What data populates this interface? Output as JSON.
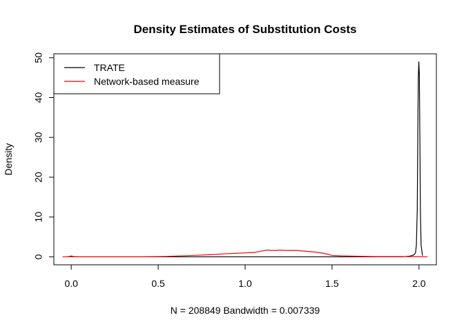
{
  "chart_data": {
    "type": "line",
    "title": "Density Estimates of Substitution Costs",
    "xlabel": "N = 208849   Bandwidth = 0.007339",
    "ylabel": "Density",
    "xlim": [
      -0.1,
      2.1
    ],
    "ylim": [
      -2,
      51
    ],
    "x_ticks": [
      0.0,
      0.5,
      1.0,
      1.5,
      2.0
    ],
    "x_tick_labels": [
      "0.0",
      "0.5",
      "1.0",
      "1.5",
      "2.0"
    ],
    "y_ticks": [
      0,
      10,
      20,
      30,
      40,
      50
    ],
    "y_tick_labels": [
      "0",
      "10",
      "20",
      "30",
      "40",
      "50"
    ],
    "grid": false,
    "legend_position": "top-left",
    "series": [
      {
        "name": "TRATE",
        "color": "#000000",
        "x": [
          -0.02,
          -0.01,
          0.0,
          0.01,
          0.02,
          0.1,
          0.5,
          1.0,
          1.5,
          1.8,
          1.9,
          1.95,
          1.97,
          1.98,
          1.985,
          1.99,
          1.993,
          1.996,
          1.999,
          2.002,
          2.005,
          2.008,
          2.012,
          2.02
        ],
        "y": [
          0.0,
          0.1,
          0.2,
          0.1,
          0.0,
          0.0,
          0.0,
          0.0,
          0.0,
          0.0,
          0.0,
          0.2,
          0.5,
          1.0,
          3.0,
          12.0,
          30.0,
          45.0,
          49.0,
          46.0,
          30.0,
          12.0,
          3.0,
          0.3
        ]
      },
      {
        "name": "Network-based measure",
        "color": "#ff0000",
        "x": [
          -0.05,
          0.0,
          0.05,
          0.1,
          0.2,
          0.3,
          0.4,
          0.5,
          0.55,
          0.6,
          0.7,
          0.8,
          0.9,
          0.95,
          1.0,
          1.05,
          1.08,
          1.1,
          1.13,
          1.15,
          1.18,
          1.2,
          1.23,
          1.25,
          1.3,
          1.35,
          1.4,
          1.45,
          1.48,
          1.5,
          1.55,
          1.6,
          1.65,
          1.7,
          1.75,
          1.8,
          1.85,
          1.9,
          1.95,
          2.0,
          2.05
        ],
        "y": [
          0.0,
          0.05,
          0.0,
          0.0,
          0.0,
          0.0,
          0.0,
          0.05,
          0.1,
          0.2,
          0.35,
          0.55,
          0.8,
          0.9,
          1.0,
          1.1,
          1.3,
          1.5,
          1.7,
          1.6,
          1.6,
          1.7,
          1.6,
          1.6,
          1.6,
          1.4,
          1.2,
          0.9,
          0.6,
          0.35,
          0.25,
          0.2,
          0.15,
          0.1,
          0.05,
          0.05,
          0.05,
          0.05,
          0.05,
          0.05,
          0.0
        ]
      }
    ]
  }
}
